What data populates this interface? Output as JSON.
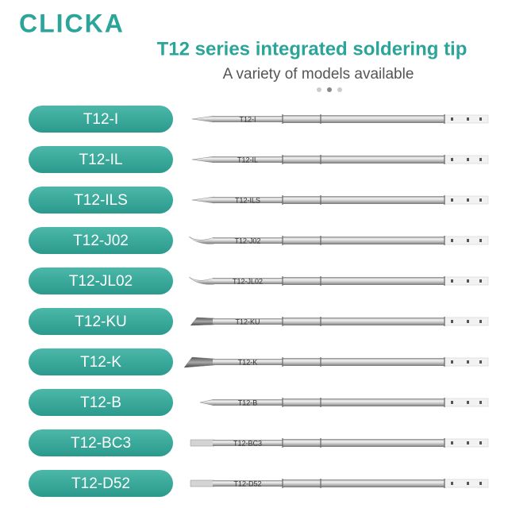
{
  "brand": "CLICKA",
  "header": {
    "title": "T12 series integrated soldering tip",
    "subtitle": "A variety of models available"
  },
  "rows": [
    {
      "label": "T12-I"
    },
    {
      "label": "T12-IL"
    },
    {
      "label": "T12-ILS"
    },
    {
      "label": "T12-J02"
    },
    {
      "label": "T12-JL02"
    },
    {
      "label": "T12-KU"
    },
    {
      "label": "T12-K"
    },
    {
      "label": "T12-B"
    },
    {
      "label": "T12-BC3"
    },
    {
      "label": "T12-D52"
    }
  ]
}
